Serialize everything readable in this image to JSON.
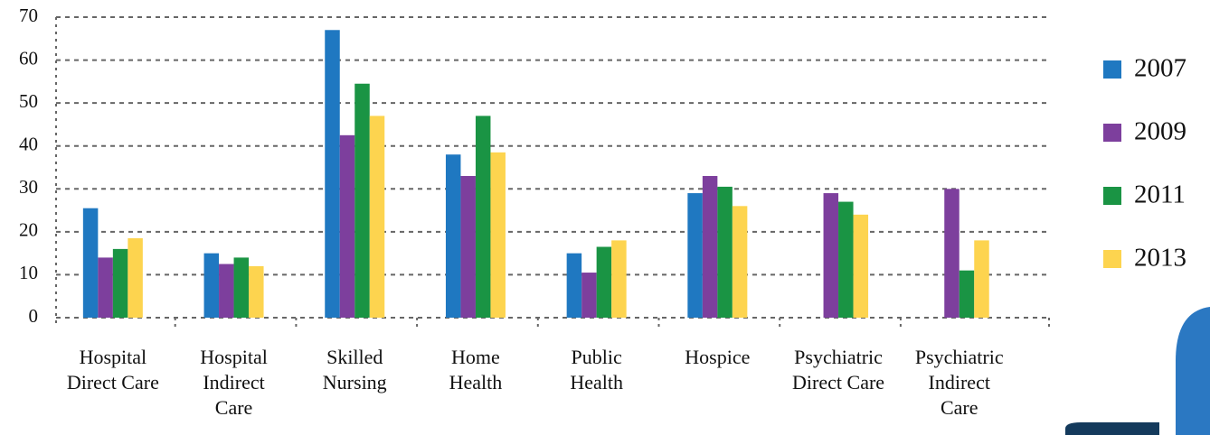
{
  "chart_data": {
    "type": "bar",
    "categories": [
      "Hospital\nDirect Care",
      "Hospital\nIndirect\nCare",
      "Skilled\nNursing",
      "Home\nHealth",
      "Public\nHealth",
      "Hospice",
      "Psychiatric\nDirect Care",
      "Psychiatric\nIndirect\nCare"
    ],
    "series": [
      {
        "name": "2007",
        "color": "#1f78c1",
        "values": [
          25.5,
          15,
          67,
          38,
          15,
          29,
          null,
          null
        ]
      },
      {
        "name": "2009",
        "color": "#7d3f9d",
        "values": [
          14,
          12.5,
          42.5,
          33,
          10.5,
          33,
          29,
          30
        ]
      },
      {
        "name": "2011",
        "color": "#1a9444",
        "values": [
          16,
          14,
          54.5,
          47,
          16.5,
          30.5,
          27,
          11
        ]
      },
      {
        "name": "2013",
        "color": "#fdd44f",
        "values": [
          18.5,
          12,
          47,
          38.5,
          18,
          26,
          24,
          18
        ]
      }
    ],
    "ylim": [
      0,
      70
    ],
    "yticks": [
      0,
      10,
      20,
      30,
      40,
      50,
      60,
      70
    ],
    "grid": true,
    "legend": "right"
  }
}
